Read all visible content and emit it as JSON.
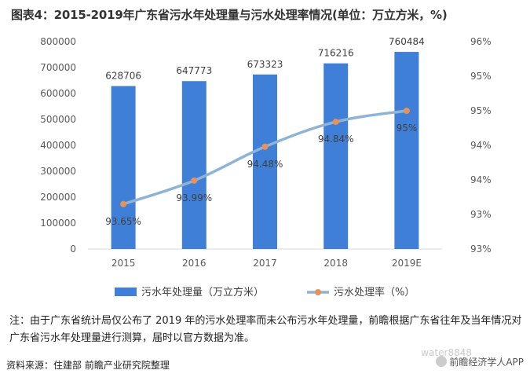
{
  "title": "图表4：2015-2019年广东省污水年处理量与污水处理率情况(单位：万立方米，%)",
  "chart_data": {
    "type": "bar+line",
    "categories": [
      "2015",
      "2016",
      "2017",
      "2018",
      "2019E"
    ],
    "series": [
      {
        "name": "污水年处理量（万立方米）",
        "type": "bar",
        "axis": "left",
        "values": [
          628706,
          647773,
          673323,
          716216,
          760484
        ],
        "labels": [
          "628706",
          "647773",
          "673323",
          "716216",
          "760484"
        ],
        "color": "#3f7fd8"
      },
      {
        "name": "污水处理率（%）",
        "type": "line",
        "axis": "right",
        "values": [
          93.65,
          93.99,
          94.48,
          94.84,
          95.0
        ],
        "labels": [
          "93.65%",
          "93.99%",
          "94.48%",
          "94.84%",
          "95%"
        ],
        "color": "#8fb3d6",
        "marker_color": "#e8925a"
      }
    ],
    "y_left": {
      "range": [
        0,
        800000
      ],
      "ticks": [
        "0",
        "100000",
        "200000",
        "300000",
        "400000",
        "500000",
        "600000",
        "700000",
        "800000"
      ]
    },
    "y_right": {
      "range": [
        93,
        96
      ],
      "ticks": [
        "93%",
        "93%",
        "94%",
        "94%",
        "95%",
        "95%",
        "96%"
      ]
    },
    "grid": false,
    "legend_position": "bottom"
  },
  "note": "注：由于广东省统计局仅公布了 2019 年的污水处理率而未公布污水年处理量，前瞻根据广东省往年及当年情况对广东省污水年处理量进行测算，届时以官方数据为准。",
  "source": "资料来源：住建部 前瞻产业研究院整理",
  "watermarks": {
    "footer": "water8848",
    "brand": "前瞻经济学人APP"
  }
}
